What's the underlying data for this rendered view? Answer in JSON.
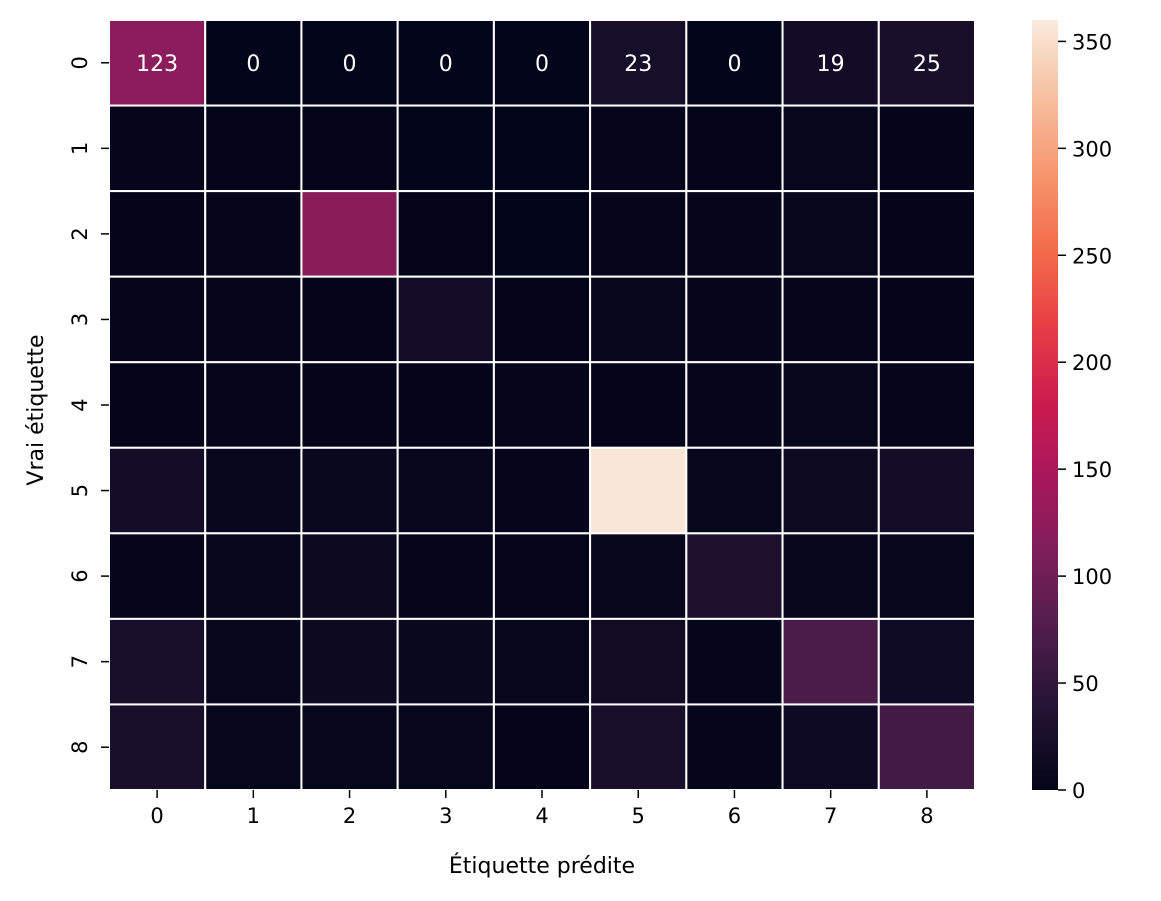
{
  "chart_data": {
    "type": "heatmap",
    "title": "",
    "xlabel": "Étiquette prédite",
    "ylabel": "Vrai étiquette",
    "x_categories": [
      "0",
      "1",
      "2",
      "3",
      "4",
      "5",
      "6",
      "7",
      "8"
    ],
    "y_categories": [
      "0",
      "1",
      "2",
      "3",
      "4",
      "5",
      "6",
      "7",
      "8"
    ],
    "values": [
      [
        123,
        0,
        0,
        0,
        0,
        23,
        0,
        19,
        25
      ],
      [
        2,
        1,
        1,
        0,
        0,
        2,
        1,
        3,
        1
      ],
      [
        1,
        2,
        120,
        1,
        0,
        2,
        2,
        3,
        1
      ],
      [
        2,
        2,
        1,
        20,
        1,
        3,
        2,
        2,
        1
      ],
      [
        1,
        2,
        1,
        1,
        2,
        1,
        2,
        4,
        2
      ],
      [
        20,
        5,
        7,
        3,
        2,
        356,
        4,
        13,
        20
      ],
      [
        2,
        4,
        10,
        2,
        2,
        4,
        30,
        5,
        3
      ],
      [
        24,
        6,
        10,
        8,
        4,
        16,
        2,
        70,
        15
      ],
      [
        25,
        3,
        3,
        3,
        1,
        25,
        2,
        14,
        63
      ]
    ],
    "annotated_rows": [
      0
    ],
    "colorbar": {
      "vmin": 0,
      "vmax": 360,
      "ticks": [
        0,
        50,
        100,
        150,
        200,
        250,
        300,
        350
      ]
    },
    "colormap": "rocket",
    "grid": false
  }
}
